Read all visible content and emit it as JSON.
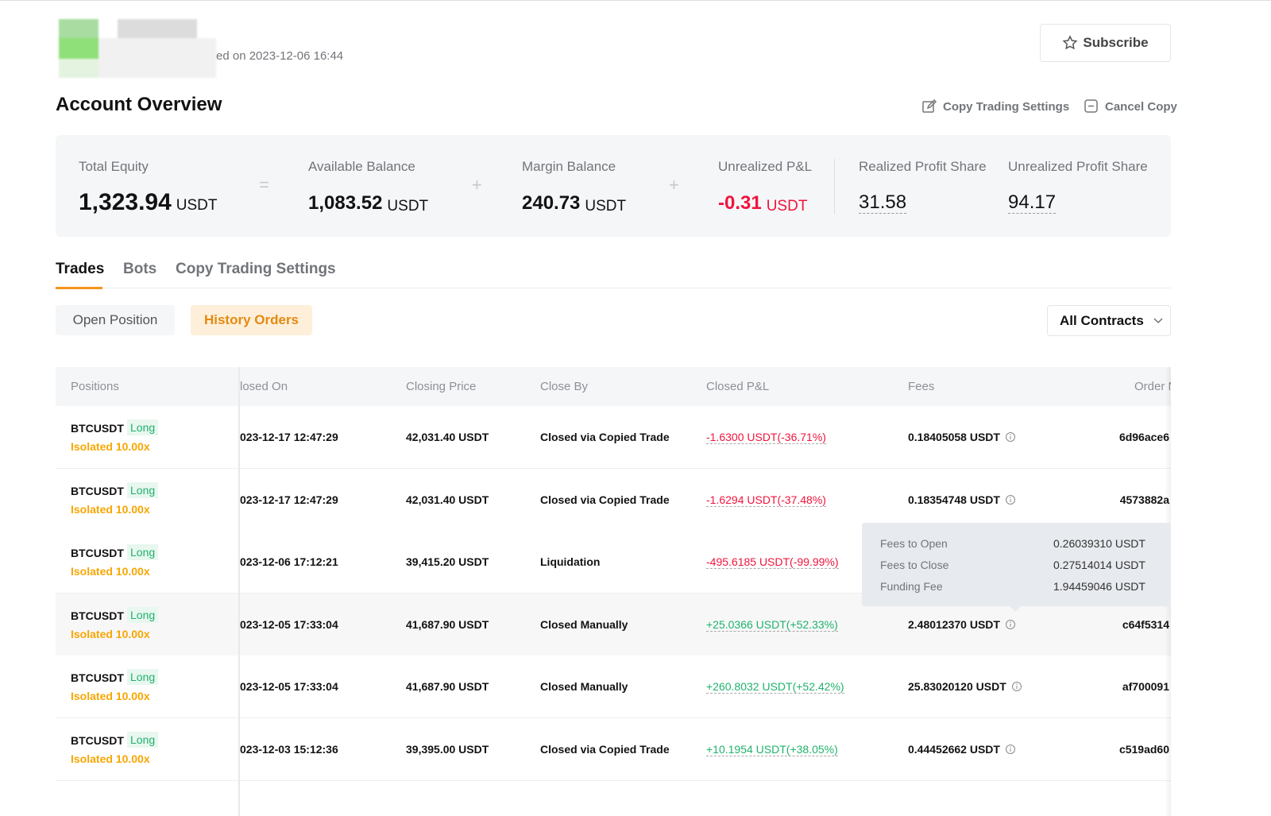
{
  "header": {
    "subtitle": "ed on 2023-12-06 16:44",
    "subscribe": "Subscribe"
  },
  "account": {
    "title": "Account Overview",
    "actions": [
      "Copy Trading Settings",
      "Cancel Copy"
    ]
  },
  "overview": {
    "items": [
      {
        "label": "Total Equity",
        "value": "1,323.94",
        "unit": "USDT"
      },
      {
        "label": "Available Balance",
        "value": "1,083.52",
        "unit": "USDT"
      },
      {
        "label": "Margin Balance",
        "value": "240.73",
        "unit": "USDT"
      },
      {
        "label": "Unrealized P&L",
        "value": "-0.31",
        "unit": "USDT"
      },
      {
        "label": "Realized Profit Share",
        "value": "31.58"
      },
      {
        "label": "Unrealized Profit Share",
        "value": "94.17"
      }
    ],
    "operators": [
      "=",
      "+",
      "+"
    ]
  },
  "tabs": [
    "Trades",
    "Bots",
    "Copy Trading Settings"
  ],
  "subtabs": [
    "Open Position",
    "History Orders"
  ],
  "filter": "All Contracts",
  "table": {
    "columns": [
      "Positions",
      "losed On",
      "Closing Price",
      "Close By",
      "Closed P&L",
      "Fees",
      "Order N"
    ],
    "rows": [
      {
        "symbol": "BTCUSDT",
        "side": "Long",
        "margin": "Isolated 10.00x",
        "closed_on": "023-12-17 12:47:29",
        "price": "42,031.40 USDT",
        "close_by": "Closed via Copied Trade",
        "pnl": "-1.6300 USDT(-36.71%)",
        "fees": "0.18405058 USDT",
        "order": "6d96ace6"
      },
      {
        "symbol": "BTCUSDT",
        "side": "Long",
        "margin": "Isolated 10.00x",
        "closed_on": "023-12-17 12:47:29",
        "price": "42,031.40 USDT",
        "close_by": "Closed via Copied Trade",
        "pnl": "-1.6294 USDT(-37.48%)",
        "fees": "0.18354748 USDT",
        "order": "4573882a"
      },
      {
        "symbol": "BTCUSDT",
        "side": "Long",
        "margin": "Isolated 10.00x",
        "closed_on": "023-12-06 17:12:21",
        "price": "39,415.20 USDT",
        "close_by": "Liquidation",
        "pnl": "-495.6185 USDT(-99.99%)",
        "fees": null,
        "order": null
      },
      {
        "symbol": "BTCUSDT",
        "side": "Long",
        "margin": "Isolated 10.00x",
        "closed_on": "023-12-05 17:33:04",
        "price": "41,687.90 USDT",
        "close_by": "Closed Manually",
        "pnl": "+25.0366 USDT(+52.33%)",
        "fees": "2.48012370 USDT",
        "order": "c64f5314"
      },
      {
        "symbol": "BTCUSDT",
        "side": "Long",
        "margin": "Isolated 10.00x",
        "closed_on": "023-12-05 17:33:04",
        "price": "41,687.90 USDT",
        "close_by": "Closed Manually",
        "pnl": "+260.8032 USDT(+52.42%)",
        "fees": "25.83020120 USDT",
        "order": "af700091"
      },
      {
        "symbol": "BTCUSDT",
        "side": "Long",
        "margin": "Isolated 10.00x",
        "closed_on": "023-12-03 15:12:36",
        "price": "39,395.00 USDT",
        "close_by": "Closed via Copied Trade",
        "pnl": "+10.1954 USDT(+38.05%)",
        "fees": "0.44452662 USDT",
        "order": "c519ad60"
      }
    ]
  },
  "tooltip": [
    {
      "label": "Fees to Open",
      "value": "0.26039310 USDT"
    },
    {
      "label": "Fees to Close",
      "value": "0.27514014 USDT"
    },
    {
      "label": "Funding Fee",
      "value": "1.94459046 USDT"
    }
  ]
}
